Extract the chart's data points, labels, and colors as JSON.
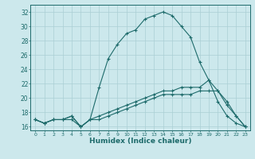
{
  "xlabel": "Humidex (Indice chaleur)",
  "bg_color": "#cce8ec",
  "line_color": "#1e6b6b",
  "grid_color": "#aacfd4",
  "xlim": [
    -0.5,
    23.5
  ],
  "ylim": [
    15.5,
    33.0
  ],
  "xticks": [
    0,
    1,
    2,
    3,
    4,
    5,
    6,
    7,
    8,
    9,
    10,
    11,
    12,
    13,
    14,
    15,
    16,
    17,
    18,
    19,
    20,
    21,
    22,
    23
  ],
  "yticks": [
    16,
    18,
    20,
    22,
    24,
    26,
    28,
    30,
    32
  ],
  "series": [
    {
      "x": [
        0,
        1,
        2,
        3,
        4,
        5,
        6,
        7,
        8,
        9,
        10,
        11,
        12,
        13,
        14,
        15,
        16,
        17,
        18,
        19,
        20,
        21,
        22,
        23
      ],
      "y": [
        17.0,
        16.5,
        17.0,
        17.0,
        17.0,
        16.0,
        17.0,
        21.5,
        25.5,
        27.5,
        29.0,
        29.5,
        31.0,
        31.5,
        32.0,
        31.5,
        30.0,
        28.5,
        25.0,
        22.5,
        19.5,
        17.5,
        16.5,
        16.0
      ]
    },
    {
      "x": [
        0,
        1,
        2,
        3,
        4,
        5,
        6,
        7,
        8,
        9,
        10,
        11,
        12,
        13,
        14,
        15,
        16,
        17,
        18,
        19,
        20,
        21,
        22,
        23
      ],
      "y": [
        17.0,
        16.5,
        17.0,
        17.0,
        17.5,
        16.0,
        17.0,
        17.5,
        18.0,
        18.5,
        19.0,
        19.5,
        20.0,
        20.5,
        21.0,
        21.0,
        21.5,
        21.5,
        21.5,
        22.5,
        21.0,
        19.5,
        17.5,
        16.0
      ]
    },
    {
      "x": [
        0,
        1,
        2,
        3,
        4,
        5,
        6,
        7,
        8,
        9,
        10,
        11,
        12,
        13,
        14,
        15,
        16,
        17,
        18,
        19,
        20,
        21,
        22,
        23
      ],
      "y": [
        17.0,
        16.5,
        17.0,
        17.0,
        17.5,
        16.0,
        17.0,
        17.0,
        17.5,
        18.0,
        18.5,
        19.0,
        19.5,
        20.0,
        20.5,
        20.5,
        20.5,
        20.5,
        21.0,
        21.0,
        21.0,
        19.0,
        17.5,
        16.0
      ]
    }
  ]
}
